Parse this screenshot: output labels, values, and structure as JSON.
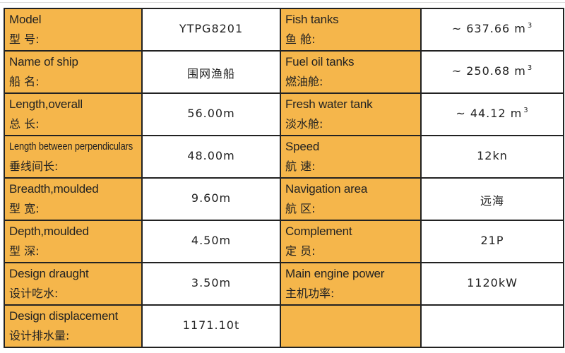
{
  "rows": [
    {
      "left": {
        "en": "Model",
        "zh": "型 号:",
        "value": "YTPG8201"
      },
      "right": {
        "en": "Fish tanks",
        "zh": "鱼 舱:",
        "value": "~ 637.66 m",
        "unit_sup": "3"
      }
    },
    {
      "left": {
        "en": "Name of ship",
        "zh": "船 名:",
        "value": "围网渔船"
      },
      "right": {
        "en": "Fuel oil tanks",
        "zh": "燃油舱:",
        "value": "~ 250.68 m",
        "unit_sup": "3"
      }
    },
    {
      "left": {
        "en": "Length,overall",
        "zh": "总 长:",
        "value": "56.00m"
      },
      "right": {
        "en": "Fresh water tank",
        "zh": "淡水舱:",
        "value": "~ 44.12 m",
        "unit_sup": "3"
      }
    },
    {
      "left": {
        "en": "Length between perpendiculars",
        "zh": "垂线间长:",
        "value": "48.00m"
      },
      "right": {
        "en": "Speed",
        "zh": "航 速:",
        "value": "12kn"
      }
    },
    {
      "left": {
        "en": "Breadth,moulded",
        "zh": "型 宽:",
        "value": "9.60m"
      },
      "right": {
        "en": "Navigation area",
        "zh": "航 区:",
        "value": "远海"
      }
    },
    {
      "left": {
        "en": "Depth,moulded",
        "zh": "型 深:",
        "value": "4.50m"
      },
      "right": {
        "en": "Complement",
        "zh": "定 员:",
        "value": "21P"
      }
    },
    {
      "left": {
        "en": "Design draught",
        "zh": "设计吃水:",
        "value": "3.50m"
      },
      "right": {
        "en": "Main engine power",
        "zh": "主机功率:",
        "value": "1120kW"
      }
    },
    {
      "left": {
        "en": "Design displacement",
        "zh": "设计排水量:",
        "value": "1171.10t"
      },
      "right": {
        "en": "",
        "zh": "",
        "value": ""
      }
    }
  ],
  "colors": {
    "label_bg": "#F5B64B",
    "value_bg": "#FFFFFF",
    "border": "#222222"
  }
}
